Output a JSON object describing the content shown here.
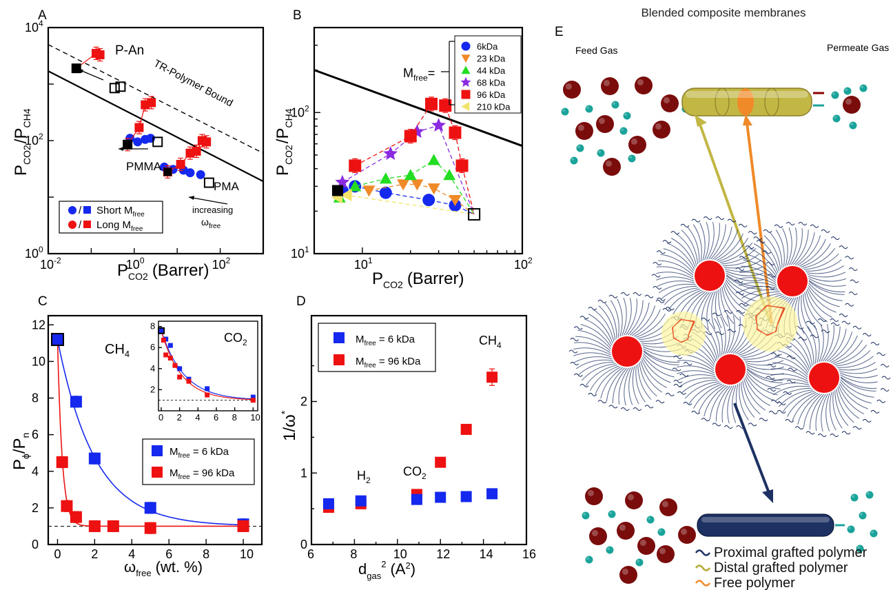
{
  "colors": {
    "blue": "#1428ee",
    "red": "#ee1111",
    "green": "#22dd22",
    "orange": "#f08a28",
    "purple": "#8a2be2",
    "yellow": "#f2e36a",
    "maroon": "#7a0c0c",
    "teal": "#1aa39a",
    "navy": "#1e3163",
    "olive": "#b3a832"
  },
  "panelA": {
    "letter": "A",
    "xlabel_main": "P",
    "xlabel_sub": "CO2",
    "xlabel_unit": "(Barrer)",
    "ylabel_main": "P",
    "ylabel_num": "CO2",
    "ylabel_den": "CH4",
    "xticks": [
      "10",
      "10",
      "10",
      "10"
    ],
    "xtick_exps": [
      "-2",
      "0",
      "2",
      ""
    ],
    "yticks": [
      "10",
      "10",
      "10",
      "10"
    ],
    "ytick_exps": [
      "0",
      "2",
      "4",
      ""
    ],
    "annotations": [
      "P-An",
      "TR-Polymer Bound",
      "PMMA",
      "PMA",
      "increasing"
    ],
    "omega_label": "ω",
    "omega_sub": "free",
    "legend": [
      {
        "prefix": "/",
        "text": "Short M",
        "sub": "free"
      },
      {
        "prefix": "/",
        "text": "Long M",
        "sub": "free"
      }
    ],
    "chart_data": {
      "type": "scatter",
      "xscale": "log",
      "yscale": "log",
      "xlim": [
        0.01,
        1000
      ],
      "ylim": [
        1,
        10000
      ],
      "bound_solid": [
        [
          0.01,
          1700
        ],
        [
          1000,
          19
        ]
      ],
      "bound_dashed": [
        [
          0.01,
          5000
        ],
        [
          1000,
          60
        ]
      ],
      "series": [
        {
          "name": "P-An",
          "points": [
            [
              0.045,
              1900
            ],
            [
              0.13,
              3500
            ],
            [
              0.16,
              3300
            ]
          ],
          "open": [
            [
              0.35,
              850
            ],
            [
              0.48,
              900
            ]
          ]
        },
        {
          "name": "PMMA blue",
          "points": [
            [
              0.8,
              110
            ],
            [
              1.2,
              95
            ],
            [
              1.8,
              105
            ],
            [
              2.4,
              110
            ]
          ],
          "open": [
            [
              3.5,
              95
            ]
          ]
        },
        {
          "name": "PMMA red",
          "points": [
            [
              0.7,
              85
            ],
            [
              1.3,
              170
            ],
            [
              1.8,
              430
            ],
            [
              2.5,
              470
            ]
          ]
        },
        {
          "name": "PMA blue",
          "points": [
            [
              5,
              34
            ],
            [
              8,
              31
            ],
            [
              14,
              30
            ],
            [
              20,
              27
            ],
            [
              35,
              25
            ]
          ],
          "open": [
            [
              55,
              18
            ]
          ]
        },
        {
          "name": "PMA red",
          "points": [
            [
              6,
              28
            ],
            [
              12,
              38
            ],
            [
              20,
              60
            ],
            [
              28,
              65
            ],
            [
              38,
              100
            ],
            [
              48,
              95
            ]
          ]
        }
      ]
    }
  },
  "panelB": {
    "letter": "B",
    "xlabel_main": "P",
    "xlabel_sub": "CO2",
    "xlabel_unit": "(Barrer)",
    "ylabel_main": "P",
    "ylabel_num": "CO2",
    "ylabel_den": "CH4",
    "xticks": [
      "10",
      "10"
    ],
    "xtick_exps": [
      "1",
      "2"
    ],
    "yticks": [
      "10",
      "10"
    ],
    "ytick_exps": [
      "1",
      "2"
    ],
    "mfree_label": "M",
    "mfree_sub": "free",
    "mfree_eq": "=",
    "legend": [
      "6kDa",
      "23 kDa",
      "44 kDa",
      "68 kDa",
      "96 kDa",
      "210 kDa"
    ],
    "chart_data": {
      "type": "scatter",
      "xscale": "log",
      "yscale": "log",
      "xlim": [
        5,
        100
      ],
      "ylim": [
        10,
        400
      ],
      "bound": [
        [
          5,
          200
        ],
        [
          100,
          58
        ]
      ],
      "series": [
        {
          "name": "6kDa",
          "marker": "circle",
          "color": "#1428ee",
          "points": [
            [
              7.5,
              28
            ],
            [
              9,
              30
            ],
            [
              14,
              27
            ],
            [
              26,
              24
            ],
            [
              38,
              22
            ]
          ]
        },
        {
          "name": "23 kDa",
          "marker": "tri-down",
          "color": "#f08a28",
          "points": [
            [
              11,
              28
            ],
            [
              18,
              31
            ],
            [
              22,
              31
            ],
            [
              28,
              29
            ],
            [
              38,
              24
            ]
          ]
        },
        {
          "name": "44 kDa",
          "marker": "tri-up",
          "color": "#22dd22",
          "points": [
            [
              7.2,
              25
            ],
            [
              9,
              30
            ],
            [
              14,
              34
            ],
            [
              20,
              36
            ],
            [
              28,
              46
            ],
            [
              35,
              36
            ]
          ]
        },
        {
          "name": "68 kDa",
          "marker": "star",
          "color": "#8a2be2",
          "points": [
            [
              7.5,
              32
            ],
            [
              15,
              51
            ],
            [
              22,
              73
            ],
            [
              30,
              81
            ]
          ]
        },
        {
          "name": "96 kDa",
          "marker": "square",
          "color": "#ee1111",
          "points": [
            [
              9,
              42
            ],
            [
              20,
              68
            ],
            [
              27,
              115
            ],
            [
              33,
              112
            ],
            [
              38,
              72
            ],
            [
              42,
              42
            ]
          ]
        },
        {
          "name": "210 kDa",
          "marker": "tri-left",
          "color": "#f2e36a",
          "points": [
            [
              7,
              25
            ],
            [
              8,
              26
            ]
          ]
        }
      ]
    }
  },
  "panelC": {
    "letter": "C",
    "xlabel": "ω",
    "xlabel_sub": "free",
    "xlabel_unit": "(wt. %)",
    "ylabel": "P",
    "ylabel_sub1": "ϕ",
    "ylabel_mid": "/P",
    "ylabel_sub2": "n",
    "gas": "CH",
    "gas_sub": "4",
    "inset_gas": "CO",
    "inset_gas_sub": "2",
    "xticks": [
      "0",
      "2",
      "4",
      "6",
      "8",
      "10"
    ],
    "yticks": [
      "0",
      "2",
      "4",
      "6",
      "8",
      "10",
      "12"
    ],
    "inset_xticks": [
      "0",
      "2",
      "4",
      "6",
      "8",
      "10"
    ],
    "inset_yticks": [
      "2",
      "4",
      "6",
      "8"
    ],
    "legend": [
      {
        "text": "M",
        "sub": "free",
        "rest": " = 6 kDa"
      },
      {
        "text": "M",
        "sub": "free",
        "rest": " = 96 kDa"
      }
    ],
    "chart_data": {
      "type": "scatter",
      "xlim": [
        -0.5,
        11
      ],
      "ylim": [
        0,
        12.5
      ],
      "series": [
        {
          "name": "6 kDa",
          "points": [
            [
              0,
              11.2
            ],
            [
              1,
              7.8
            ],
            [
              2,
              4.7
            ],
            [
              5,
              2.0
            ],
            [
              10,
              1.1
            ]
          ]
        },
        {
          "name": "96 kDa",
          "points": [
            [
              0.25,
              4.5
            ],
            [
              0.5,
              2.1
            ],
            [
              1,
              1.5
            ],
            [
              2,
              1.0
            ],
            [
              3,
              1.0
            ],
            [
              5,
              0.9
            ],
            [
              10,
              1.0
            ]
          ]
        }
      ],
      "inset": {
        "xlim": [
          -0.3,
          10.5
        ],
        "ylim": [
          0,
          8.5
        ],
        "series": [
          {
            "name": "6 kDa",
            "points": [
              [
                0,
                7.6
              ],
              [
                0.5,
                6.8
              ],
              [
                1,
                6.2
              ],
              [
                2,
                4.0
              ],
              [
                3,
                3.0
              ],
              [
                5,
                2.1
              ],
              [
                10,
                1.3
              ]
            ]
          },
          {
            "name": "96 kDa",
            "points": [
              [
                0.25,
                6.7
              ],
              [
                0.5,
                5.3
              ],
              [
                1,
                5.0
              ],
              [
                1.5,
                4.3
              ],
              [
                2,
                3.2
              ],
              [
                3,
                2.8
              ],
              [
                5,
                1.5
              ],
              [
                10,
                1.0
              ]
            ]
          }
        ]
      }
    }
  },
  "panelD": {
    "letter": "D",
    "xlabel": "d",
    "xlabel_sub": "gas",
    "xlabel_sup": "2",
    "xlabel_unit": "(A",
    "xlabel_unit_sup": "2",
    "xlabel_close": ")",
    "ylabel": "1/ω",
    "ylabel_sup": "*",
    "xticks": [
      "6",
      "8",
      "10",
      "12",
      "14",
      "16"
    ],
    "yticks": [
      "0",
      "1",
      "2"
    ],
    "annotations": [
      {
        "t": "H",
        "s": "2"
      },
      {
        "t": "CO",
        "s": "2"
      },
      {
        "t": "CH",
        "s": "4"
      }
    ],
    "legend": [
      {
        "text": "M",
        "sub": "free",
        "rest": " = 6 kDa"
      },
      {
        "text": "M",
        "sub": "free",
        "rest": " = 96 kDa"
      }
    ],
    "chart_data": {
      "type": "scatter",
      "xlim": [
        6,
        16
      ],
      "ylim": [
        0,
        3.2
      ],
      "series": [
        {
          "name": "6 kDa",
          "points": [
            [
              6.8,
              0.57
            ],
            [
              8.3,
              0.61
            ],
            [
              10.9,
              0.63
            ],
            [
              12,
              0.66
            ],
            [
              13.2,
              0.67
            ],
            [
              14.4,
              0.71
            ]
          ]
        },
        {
          "name": "96 kDa",
          "points": [
            [
              6.8,
              0.52
            ],
            [
              8.3,
              0.57
            ],
            [
              10.9,
              0.7
            ],
            [
              12,
              1.15
            ],
            [
              13.2,
              1.61
            ],
            [
              14.4,
              2.34
            ]
          ]
        }
      ]
    }
  },
  "panelE": {
    "letter": "E",
    "title": "Blended composite membranes",
    "feed": "Feed Gas",
    "permeate": "Permeate Gas",
    "key": [
      "Proximal grafted polymer",
      "Distal grafted polymer",
      "Free polymer"
    ]
  }
}
